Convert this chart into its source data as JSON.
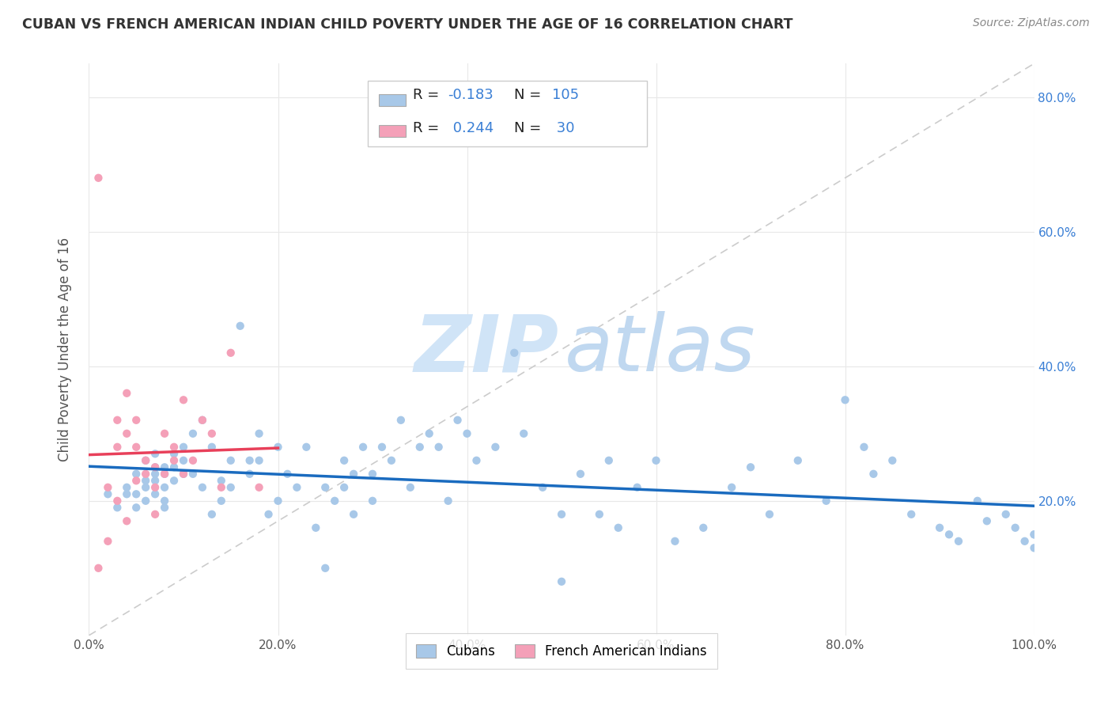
{
  "title": "CUBAN VS FRENCH AMERICAN INDIAN CHILD POVERTY UNDER THE AGE OF 16 CORRELATION CHART",
  "source": "Source: ZipAtlas.com",
  "ylabel": "Child Poverty Under the Age of 16",
  "xlim": [
    0.0,
    1.0
  ],
  "ylim": [
    0.0,
    0.85
  ],
  "x_ticks": [
    0.0,
    0.2,
    0.4,
    0.6,
    0.8,
    1.0
  ],
  "x_tick_labels": [
    "0.0%",
    "20.0%",
    "40.0%",
    "60.0%",
    "80.0%",
    "100.0%"
  ],
  "y_ticks": [
    0.2,
    0.4,
    0.6,
    0.8
  ],
  "right_y_tick_labels": [
    "20.0%",
    "40.0%",
    "60.0%",
    "80.0%"
  ],
  "cubans_color": "#a8c8e8",
  "french_color": "#f4a0b8",
  "cubans_line_color": "#1a6bbf",
  "french_line_color": "#e8405a",
  "dash_color": "#cccccc",
  "watermark_zip_color": "#d0e4f7",
  "watermark_atlas_color": "#c0d8f0",
  "legend_box_color": "#e8e8e8",
  "cubans_x": [
    0.02,
    0.03,
    0.04,
    0.04,
    0.05,
    0.05,
    0.05,
    0.06,
    0.06,
    0.06,
    0.06,
    0.07,
    0.07,
    0.07,
    0.07,
    0.07,
    0.08,
    0.08,
    0.08,
    0.08,
    0.08,
    0.09,
    0.09,
    0.09,
    0.1,
    0.1,
    0.1,
    0.11,
    0.11,
    0.12,
    0.12,
    0.13,
    0.13,
    0.14,
    0.14,
    0.15,
    0.15,
    0.16,
    0.17,
    0.17,
    0.18,
    0.18,
    0.19,
    0.2,
    0.2,
    0.21,
    0.22,
    0.23,
    0.24,
    0.25,
    0.25,
    0.26,
    0.27,
    0.27,
    0.28,
    0.28,
    0.29,
    0.3,
    0.3,
    0.31,
    0.32,
    0.33,
    0.34,
    0.35,
    0.36,
    0.37,
    0.38,
    0.39,
    0.4,
    0.41,
    0.43,
    0.45,
    0.46,
    0.48,
    0.5,
    0.5,
    0.52,
    0.54,
    0.55,
    0.56,
    0.58,
    0.6,
    0.62,
    0.65,
    0.68,
    0.7,
    0.72,
    0.75,
    0.78,
    0.8,
    0.82,
    0.83,
    0.85,
    0.87,
    0.9,
    0.91,
    0.92,
    0.94,
    0.95,
    0.97,
    0.98,
    0.99,
    1.0,
    1.0,
    1.0
  ],
  "cubans_y": [
    0.21,
    0.19,
    0.22,
    0.21,
    0.24,
    0.21,
    0.19,
    0.26,
    0.23,
    0.22,
    0.2,
    0.27,
    0.25,
    0.24,
    0.23,
    0.21,
    0.25,
    0.24,
    0.22,
    0.2,
    0.19,
    0.27,
    0.25,
    0.23,
    0.28,
    0.26,
    0.24,
    0.3,
    0.24,
    0.32,
    0.22,
    0.28,
    0.18,
    0.23,
    0.2,
    0.26,
    0.22,
    0.46,
    0.26,
    0.24,
    0.3,
    0.26,
    0.18,
    0.28,
    0.2,
    0.24,
    0.22,
    0.28,
    0.16,
    0.22,
    0.1,
    0.2,
    0.26,
    0.22,
    0.24,
    0.18,
    0.28,
    0.24,
    0.2,
    0.28,
    0.26,
    0.32,
    0.22,
    0.28,
    0.3,
    0.28,
    0.2,
    0.32,
    0.3,
    0.26,
    0.28,
    0.42,
    0.3,
    0.22,
    0.18,
    0.08,
    0.24,
    0.18,
    0.26,
    0.16,
    0.22,
    0.26,
    0.14,
    0.16,
    0.22,
    0.25,
    0.18,
    0.26,
    0.2,
    0.35,
    0.28,
    0.24,
    0.26,
    0.18,
    0.16,
    0.15,
    0.14,
    0.2,
    0.17,
    0.18,
    0.16,
    0.14,
    0.15,
    0.13,
    0.15
  ],
  "french_x": [
    0.01,
    0.01,
    0.02,
    0.02,
    0.03,
    0.03,
    0.03,
    0.04,
    0.04,
    0.04,
    0.05,
    0.05,
    0.05,
    0.06,
    0.06,
    0.07,
    0.07,
    0.07,
    0.08,
    0.08,
    0.09,
    0.09,
    0.1,
    0.1,
    0.11,
    0.12,
    0.13,
    0.14,
    0.15,
    0.18
  ],
  "french_y": [
    0.68,
    0.1,
    0.22,
    0.14,
    0.32,
    0.28,
    0.2,
    0.36,
    0.3,
    0.17,
    0.32,
    0.28,
    0.23,
    0.26,
    0.24,
    0.25,
    0.22,
    0.18,
    0.3,
    0.24,
    0.28,
    0.26,
    0.35,
    0.24,
    0.26,
    0.32,
    0.3,
    0.22,
    0.42,
    0.22
  ]
}
